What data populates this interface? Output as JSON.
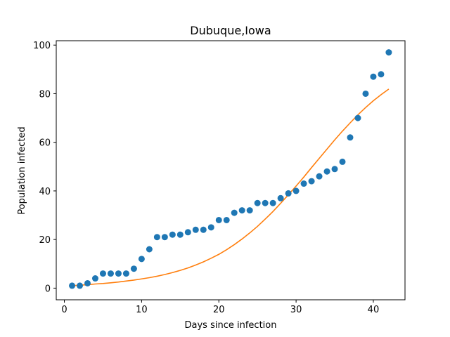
{
  "chart_data": {
    "type": "scatter",
    "title": "Dubuque,Iowa",
    "xlabel": "Days since infection",
    "ylabel": "Population infected",
    "xlim": [
      -1.05,
      44.1
    ],
    "ylim": [
      -4.8,
      101.8
    ],
    "xticks": [
      0,
      10,
      20,
      30,
      40
    ],
    "yticks": [
      0,
      20,
      40,
      60,
      80,
      100
    ],
    "grid": false,
    "legend": "none",
    "series": [
      {
        "type": "scatter",
        "color": "#1f77b4",
        "x": [
          1,
          2,
          3,
          4,
          5,
          6,
          7,
          8,
          9,
          10,
          11,
          12,
          13,
          14,
          15,
          16,
          17,
          18,
          19,
          20,
          21,
          22,
          23,
          24,
          25,
          26,
          27,
          28,
          29,
          30,
          31,
          32,
          33,
          34,
          35,
          36,
          37,
          38,
          39,
          40,
          41,
          42
        ],
        "y": [
          1,
          1,
          2,
          4,
          6,
          6,
          6,
          6,
          8,
          12,
          16,
          21,
          21,
          22,
          22,
          23,
          24,
          24,
          25,
          28,
          28,
          31,
          32,
          32,
          35,
          35,
          35,
          37,
          39,
          40,
          43,
          44,
          46,
          48,
          49,
          52,
          62,
          70,
          80,
          87,
          88,
          97
        ]
      },
      {
        "type": "line",
        "color": "#ff7f0e",
        "x": [
          1,
          2,
          3,
          4,
          5,
          6,
          7,
          8,
          9,
          10,
          11,
          12,
          13,
          14,
          15,
          16,
          17,
          18,
          19,
          20,
          21,
          22,
          23,
          24,
          25,
          26,
          27,
          28,
          29,
          30,
          31,
          32,
          33,
          34,
          35,
          36,
          37,
          38,
          39,
          40,
          41,
          42
        ],
        "y": [
          1.0,
          1.2,
          1.4,
          1.7,
          1.9,
          2.2,
          2.5,
          2.9,
          3.3,
          3.8,
          4.3,
          4.9,
          5.6,
          6.4,
          7.3,
          8.3,
          9.5,
          10.8,
          12.3,
          13.9,
          15.8,
          17.9,
          20.2,
          22.7,
          25.4,
          28.4,
          31.5,
          34.9,
          38.4,
          42.0,
          45.7,
          49.6,
          53.4,
          57.2,
          61.0,
          64.6,
          68.0,
          71.3,
          74.3,
          77.1,
          79.6,
          81.9
        ]
      }
    ]
  }
}
